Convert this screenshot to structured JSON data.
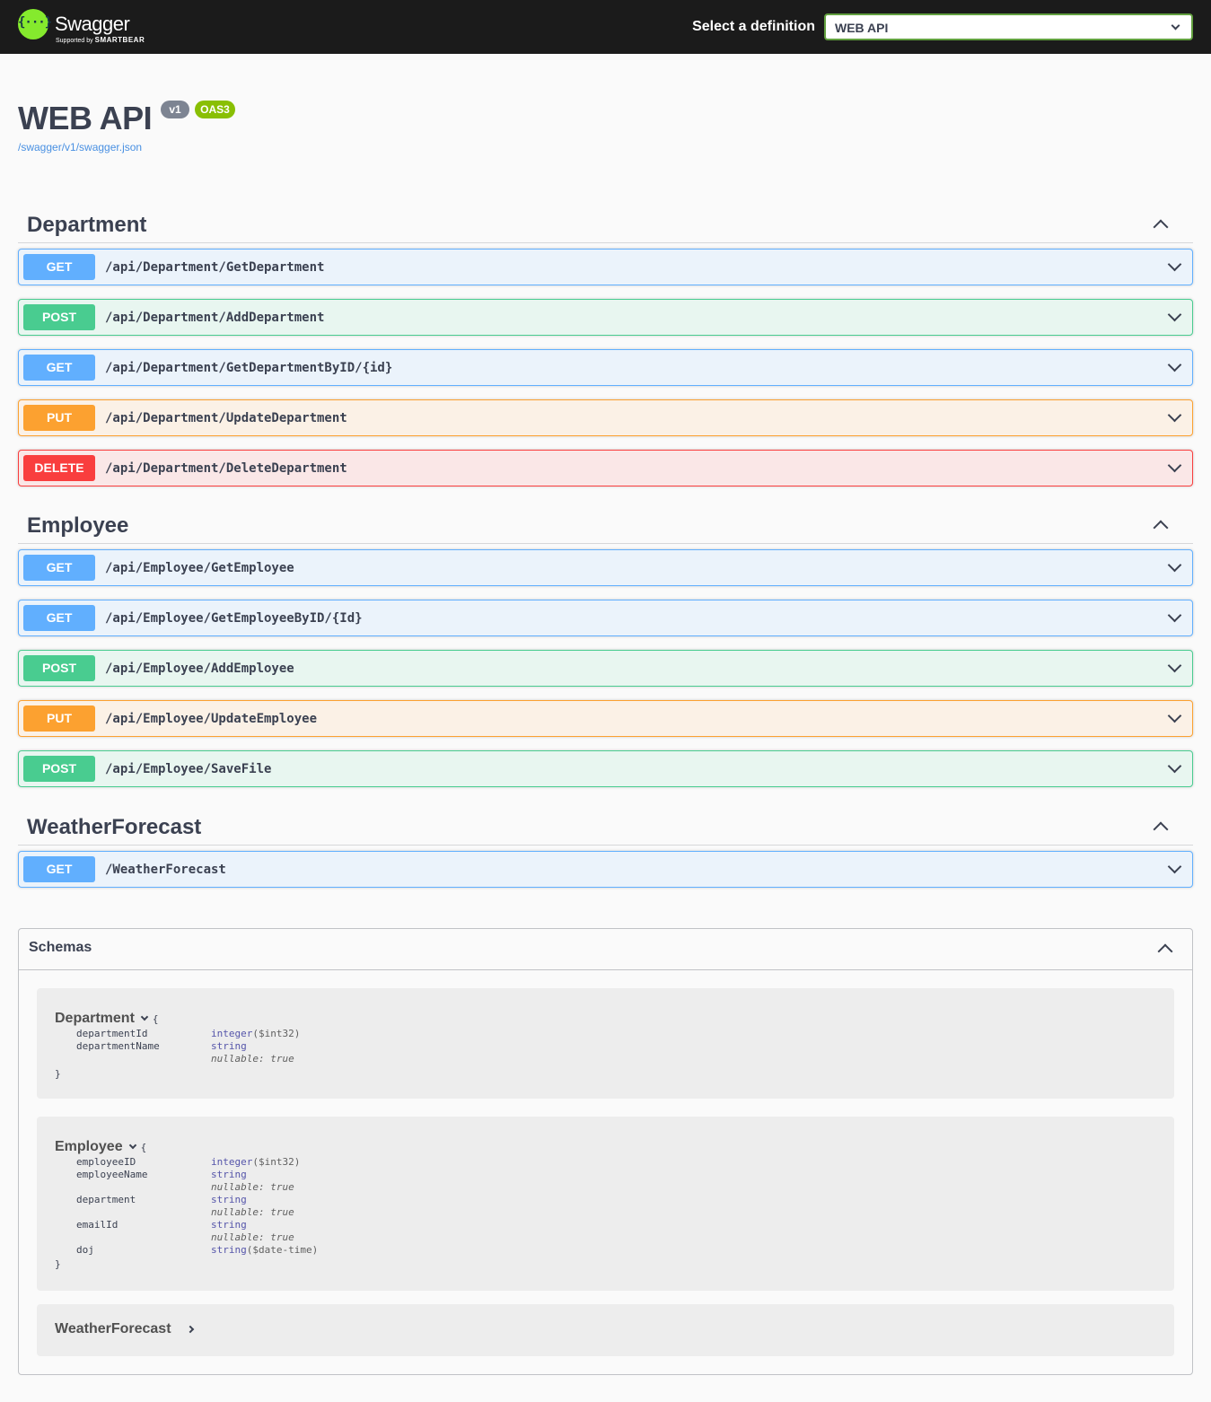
{
  "topbar": {
    "logo_name": "Swagger",
    "logo_sub_prefix": "Supported by",
    "logo_sub_brand": "SMARTBEAR",
    "definition_label": "Select a definition",
    "definition_value": "WEB API"
  },
  "info": {
    "title": "WEB API",
    "version": "v1",
    "oas": "OAS3",
    "spec_url": "/swagger/v1/swagger.json"
  },
  "tags": [
    {
      "name": "Department",
      "operations": [
        {
          "method": "GET",
          "path": "/api/Department/GetDepartment"
        },
        {
          "method": "POST",
          "path": "/api/Department/AddDepartment"
        },
        {
          "method": "GET",
          "path": "/api/Department/GetDepartmentByID/{id}"
        },
        {
          "method": "PUT",
          "path": "/api/Department/UpdateDepartment"
        },
        {
          "method": "DELETE",
          "path": "/api/Department/DeleteDepartment"
        }
      ]
    },
    {
      "name": "Employee",
      "operations": [
        {
          "method": "GET",
          "path": "/api/Employee/GetEmployee"
        },
        {
          "method": "GET",
          "path": "/api/Employee/GetEmployeeByID/{Id}"
        },
        {
          "method": "POST",
          "path": "/api/Employee/AddEmployee"
        },
        {
          "method": "PUT",
          "path": "/api/Employee/UpdateEmployee"
        },
        {
          "method": "POST",
          "path": "/api/Employee/SaveFile"
        }
      ]
    },
    {
      "name": "WeatherForecast",
      "operations": [
        {
          "method": "GET",
          "path": "/WeatherForecast"
        }
      ]
    }
  ],
  "method_colors": {
    "GET": "#61affe",
    "POST": "#49cc90",
    "PUT": "#fca130",
    "DELETE": "#f93e3e"
  },
  "schemas": {
    "title": "Schemas",
    "open_brace": "{",
    "close_brace": "}",
    "models": [
      {
        "name": "Department",
        "props": [
          {
            "name": "departmentId",
            "type": "integer",
            "format": "($int32)",
            "nullable": ""
          },
          {
            "name": "departmentName",
            "type": "string",
            "format": "",
            "nullable": "nullable: true"
          }
        ]
      },
      {
        "name": "Employee",
        "props": [
          {
            "name": "employeeID",
            "type": "integer",
            "format": "($int32)",
            "nullable": ""
          },
          {
            "name": "employeeName",
            "type": "string",
            "format": "",
            "nullable": "nullable: true"
          },
          {
            "name": "department",
            "type": "string",
            "format": "",
            "nullable": "nullable: true"
          },
          {
            "name": "emailId",
            "type": "string",
            "format": "",
            "nullable": "nullable: true"
          },
          {
            "name": "doj",
            "type": "string",
            "format": "($date-time)",
            "nullable": ""
          }
        ]
      },
      {
        "name": "WeatherForecast",
        "props": []
      }
    ]
  }
}
